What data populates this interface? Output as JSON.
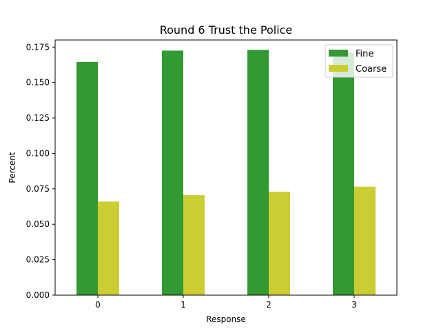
{
  "chart_data": {
    "type": "bar",
    "title": "Round 6 Trust the Police",
    "xlabel": "Response",
    "ylabel": "Percent",
    "categories": [
      "0",
      "1",
      "2",
      "3"
    ],
    "series": [
      {
        "name": "Fine",
        "color": "#339933",
        "values": [
          0.1645,
          0.1725,
          0.173,
          0.171
        ]
      },
      {
        "name": "Coarse",
        "color": "#cccc33",
        "values": [
          0.066,
          0.0705,
          0.073,
          0.0765
        ]
      }
    ],
    "yticks": [
      "0.000",
      "0.025",
      "0.050",
      "0.075",
      "0.100",
      "0.125",
      "0.150",
      "0.175"
    ],
    "ylim": [
      0,
      0.18
    ],
    "grid": false,
    "legend": "top-right"
  }
}
